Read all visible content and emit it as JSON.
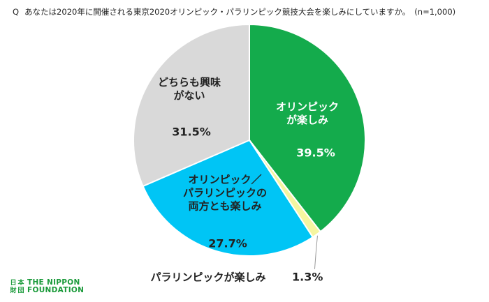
{
  "question": {
    "prefix": "Q",
    "text": "あなたは2020年に開催される東京2020オリンピック・パラリンピック競技大会を楽しみにしていますか。",
    "sample": "(n=1,000)"
  },
  "chart_data": {
    "type": "pie",
    "start_angle_deg": 0,
    "direction": "clockwise",
    "slices": [
      {
        "label_lines": [
          "オリンピック",
          "が楽しみ"
        ],
        "value": 39.5,
        "value_label": "39.5%",
        "color": "#14AB4C",
        "text_color": "#FFFFFF"
      },
      {
        "label_lines": [
          "パラリンピックが楽しみ"
        ],
        "value": 1.3,
        "value_label": "1.3%",
        "color": "#F5F5A0",
        "text_color": "#222222"
      },
      {
        "label_lines": [
          "オリンピック／",
          "パラリンピックの",
          "両方とも楽しみ"
        ],
        "value": 27.7,
        "value_label": "27.7%",
        "color": "#00C5F5",
        "text_color": "#222222"
      },
      {
        "label_lines": [
          "どちらも興味",
          "がない"
        ],
        "value": 31.5,
        "value_label": "31.5%",
        "color": "#D9D9D9",
        "text_color": "#222222"
      }
    ]
  },
  "logo": {
    "glyphs": [
      "日",
      "本",
      "財",
      "団"
    ],
    "line1": "THE NIPPON",
    "line2": "FOUNDATION",
    "color": "#1A9A3A"
  }
}
